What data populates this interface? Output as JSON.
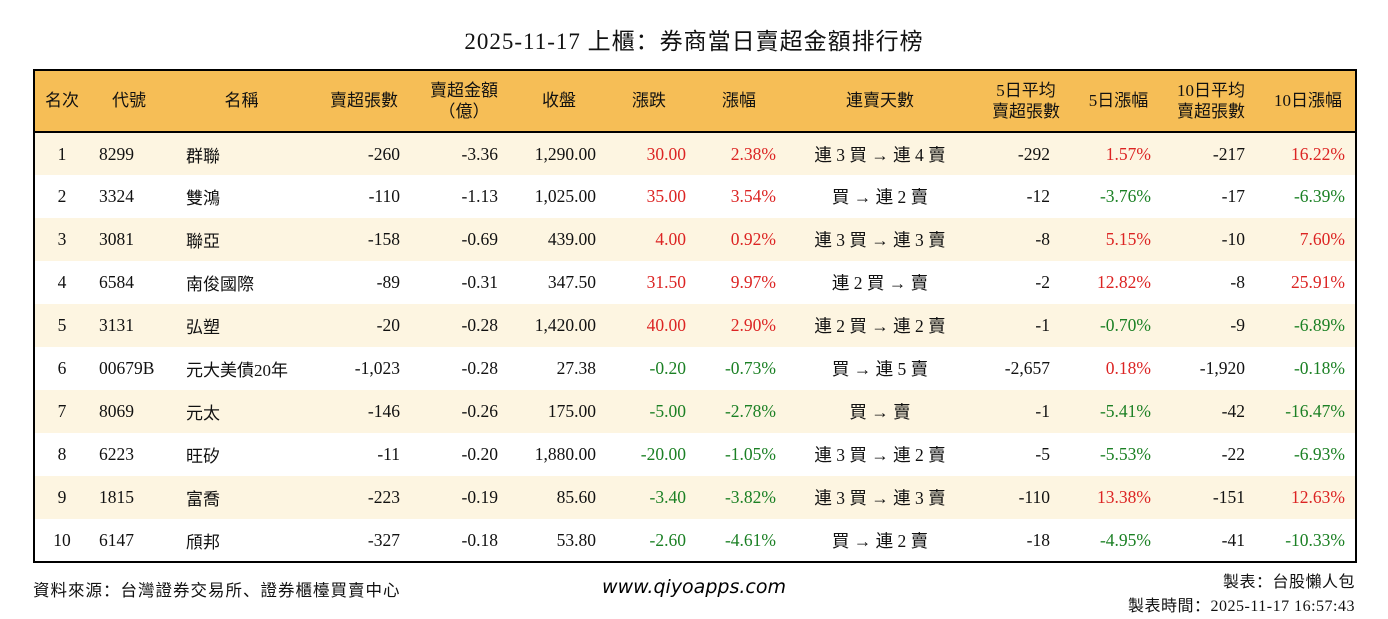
{
  "title": "2025-11-17 上櫃：券商當日賣超金額排行榜",
  "colors": {
    "up": "#dc2423",
    "down": "#1b8024",
    "header_bg": "#f6be56",
    "row_alt_bg": "#fdf5e1",
    "border": "#000000"
  },
  "table": {
    "columns": [
      {
        "key": "rank",
        "label": "名次"
      },
      {
        "key": "code",
        "label": "代號"
      },
      {
        "key": "name",
        "label": "名稱"
      },
      {
        "key": "net_sell_volume",
        "label": "賣超張數"
      },
      {
        "key": "net_sell_amount",
        "label": "賣超金額\n（億）"
      },
      {
        "key": "close",
        "label": "收盤"
      },
      {
        "key": "change",
        "label": "漲跌"
      },
      {
        "key": "change_pct",
        "label": "漲幅"
      },
      {
        "key": "streak",
        "label": "連賣天數"
      },
      {
        "key": "avg5_volume",
        "label": "5日平均\n賣超張數"
      },
      {
        "key": "pct5",
        "label": "5日漲幅"
      },
      {
        "key": "avg10_volume",
        "label": "10日平均\n賣超張數"
      },
      {
        "key": "pct10",
        "label": "10日漲幅"
      }
    ],
    "signed_color_columns": [
      "change",
      "change_pct",
      "pct5",
      "pct10"
    ],
    "rows": [
      [
        "1",
        "8299",
        "群聯",
        "-260",
        "-3.36",
        "1,290.00",
        "30.00",
        "2.38%",
        "連 3 買 → 連 4 賣",
        "-292",
        "1.57%",
        "-217",
        "16.22%"
      ],
      [
        "2",
        "3324",
        "雙鴻",
        "-110",
        "-1.13",
        "1,025.00",
        "35.00",
        "3.54%",
        "買 → 連 2 賣",
        "-12",
        "-3.76%",
        "-17",
        "-6.39%"
      ],
      [
        "3",
        "3081",
        "聯亞",
        "-158",
        "-0.69",
        "439.00",
        "4.00",
        "0.92%",
        "連 3 買 → 連 3 賣",
        "-8",
        "5.15%",
        "-10",
        "7.60%"
      ],
      [
        "4",
        "6584",
        "南俊國際",
        "-89",
        "-0.31",
        "347.50",
        "31.50",
        "9.97%",
        "連 2 買 → 賣",
        "-2",
        "12.82%",
        "-8",
        "25.91%"
      ],
      [
        "5",
        "3131",
        "弘塑",
        "-20",
        "-0.28",
        "1,420.00",
        "40.00",
        "2.90%",
        "連 2 買 → 連 2 賣",
        "-1",
        "-0.70%",
        "-9",
        "-6.89%"
      ],
      [
        "6",
        "00679B",
        "元大美債20年",
        "-1,023",
        "-0.28",
        "27.38",
        "-0.20",
        "-0.73%",
        "買 → 連 5 賣",
        "-2,657",
        "0.18%",
        "-1,920",
        "-0.18%"
      ],
      [
        "7",
        "8069",
        "元太",
        "-146",
        "-0.26",
        "175.00",
        "-5.00",
        "-2.78%",
        "買 → 賣",
        "-1",
        "-5.41%",
        "-42",
        "-16.47%"
      ],
      [
        "8",
        "6223",
        "旺矽",
        "-11",
        "-0.20",
        "1,880.00",
        "-20.00",
        "-1.05%",
        "連 3 買 → 連 2 賣",
        "-5",
        "-5.53%",
        "-22",
        "-6.93%"
      ],
      [
        "9",
        "1815",
        "富喬",
        "-223",
        "-0.19",
        "85.60",
        "-3.40",
        "-3.82%",
        "連 3 買 → 連 3 賣",
        "-110",
        "13.38%",
        "-151",
        "12.63%"
      ],
      [
        "10",
        "6147",
        "頎邦",
        "-327",
        "-0.18",
        "53.80",
        "-2.60",
        "-4.61%",
        "買 → 連 2 賣",
        "-18",
        "-4.95%",
        "-41",
        "-10.33%"
      ]
    ]
  },
  "footer": {
    "source": "資料來源：台灣證券交易所、證券櫃檯買賣中心",
    "website": "www.qiyoapps.com",
    "made_by": "製表：台股懶人包",
    "made_time": "製表時間：2025-11-17 16:57:43"
  }
}
